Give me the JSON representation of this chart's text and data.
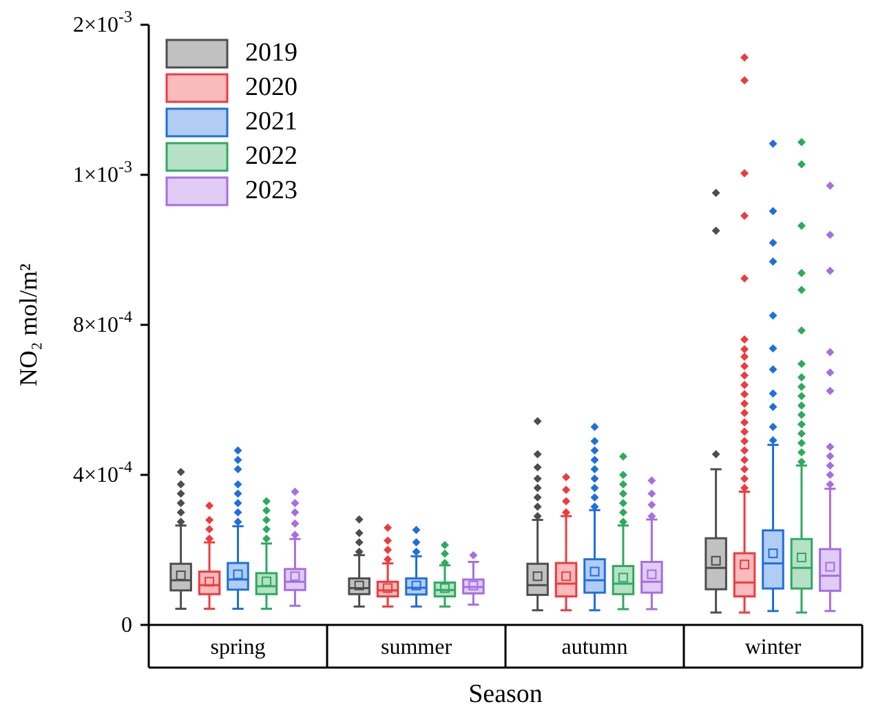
{
  "chart_data": {
    "type": "box",
    "xlabel": "Season",
    "ylabel": "NO₂ mol/m²",
    "categories": [
      "spring",
      "summer",
      "autumn",
      "winter"
    ],
    "ylim": [
      0,
      0.0016
    ],
    "yticks": [
      {
        "value": 0,
        "label": "0"
      },
      {
        "value": 0.0004,
        "label": "4×10$^{-4}$"
      },
      {
        "value": 0.0008,
        "label": "8×10$^{-4}$"
      },
      {
        "value": 0.0012,
        "label": "1×10$^{-3}$"
      },
      {
        "value": 0.0016,
        "label": "2×10$^{-3}$"
      }
    ],
    "legend": "top left",
    "marker": "diamond",
    "series": [
      {
        "name": "2019",
        "color": "#4d4d4d",
        "boxes": [
          {
            "low": 4.3e-05,
            "q1": 9.2e-05,
            "median": 0.000119,
            "q3": 0.000163,
            "high": 0.000265,
            "mean": 0.000132,
            "outliers": [
              0.000275,
              0.0003,
              0.000325,
              0.00035,
              0.000375,
              0.000408
            ]
          },
          {
            "low": 4.9e-05,
            "q1": 8.2e-05,
            "median": 9.8e-05,
            "q3": 0.000124,
            "high": 0.000186,
            "mean": 0.000105,
            "outliers": [
              0.000195,
              0.00022,
              0.000245,
              0.000281
            ]
          },
          {
            "low": 3.9e-05,
            "q1": 8e-05,
            "median": 0.000106,
            "q3": 0.000163,
            "high": 0.00028,
            "mean": 0.00013,
            "outliers": [
              0.00029,
              0.000315,
              0.00034,
              0.000365,
              0.00039,
              0.00042,
              0.000455,
              0.000543
            ]
          },
          {
            "low": 3.3e-05,
            "q1": 9.5e-05,
            "median": 0.000152,
            "q3": 0.000231,
            "high": 0.000415,
            "mean": 0.000171,
            "outliers": [
              0.000455,
              0.001051,
              0.001152
            ]
          }
        ]
      },
      {
        "name": "2020",
        "color": "#ee3b3e",
        "boxes": [
          {
            "low": 4.3e-05,
            "q1": 8.2e-05,
            "median": 0.000106,
            "q3": 0.000142,
            "high": 0.00022,
            "mean": 0.000115,
            "outliers": [
              0.00023,
              0.000255,
              0.00028,
              0.000318
            ]
          },
          {
            "low": 4.9e-05,
            "q1": 7.6e-05,
            "median": 9.2e-05,
            "q3": 0.000115,
            "high": 0.000164,
            "mean": 9.8e-05,
            "outliers": [
              0.000175,
              0.0002,
              0.000225,
              0.000259
            ]
          },
          {
            "low": 3.9e-05,
            "q1": 7.6e-05,
            "median": 0.00011,
            "q3": 0.000165,
            "high": 0.00029,
            "mean": 0.00013,
            "outliers": [
              0.0003,
              0.00033,
              0.00036,
              0.000394
            ]
          },
          {
            "low": 3.3e-05,
            "q1": 7.6e-05,
            "median": 0.000113,
            "q3": 0.000191,
            "high": 0.000355,
            "mean": 0.000161,
            "outliers": [
              0.000365,
              0.00039,
              0.000415,
              0.00044,
              0.000465,
              0.00049,
              0.000515,
              0.00054,
              0.000565,
              0.00059,
              0.000615,
              0.00064,
              0.000665,
              0.00069,
              0.000715,
              0.000735,
              0.000761,
              0.000924,
              0.001091,
              0.001204,
              0.001452,
              0.001513
            ]
          }
        ]
      },
      {
        "name": "2021",
        "color": "#1f6fdc",
        "boxes": [
          {
            "low": 4.3e-05,
            "q1": 9.4e-05,
            "median": 0.000121,
            "q3": 0.000165,
            "high": 0.000263,
            "mean": 0.000135,
            "outliers": [
              0.000275,
              0.0003,
              0.000325,
              0.00035,
              0.000375,
              0.000415,
              0.00044,
              0.000465
            ]
          },
          {
            "low": 4.9e-05,
            "q1": 8.1e-05,
            "median": 9.9e-05,
            "q3": 0.000124,
            "high": 0.000183,
            "mean": 0.000105,
            "outliers": [
              0.000195,
              0.00022,
              0.000253
            ]
          },
          {
            "low": 3.9e-05,
            "q1": 8.6e-05,
            "median": 0.000119,
            "q3": 0.000175,
            "high": 0.000306,
            "mean": 0.000142,
            "outliers": [
              0.000315,
              0.00034,
              0.000365,
              0.00039,
              0.000415,
              0.00044,
              0.000465,
              0.00049,
              0.000528
            ]
          },
          {
            "low": 3.7e-05,
            "q1": 9.7e-05,
            "median": 0.000164,
            "q3": 0.000252,
            "high": 0.00048,
            "mean": 0.000191,
            "outliers": [
              0.000492,
              0.000528,
              0.000581,
              0.000617,
              0.000681,
              0.000737,
              0.000825,
              0.000969,
              0.001019,
              0.001103,
              0.001283
            ]
          }
        ]
      },
      {
        "name": "2022",
        "color": "#2eaa5e",
        "boxes": [
          {
            "low": 4.3e-05,
            "q1": 8.2e-05,
            "median": 0.000103,
            "q3": 0.000138,
            "high": 0.000217,
            "mean": 0.000116,
            "outliers": [
              0.00023,
              0.000255,
              0.00028,
              0.000305,
              0.00033
            ]
          },
          {
            "low": 4.9e-05,
            "q1": 7.6e-05,
            "median": 9.3e-05,
            "q3": 0.000113,
            "high": 0.000159,
            "mean": 9.8e-05,
            "outliers": [
              0.000165,
              0.00019,
              0.000213
            ]
          },
          {
            "low": 4.2e-05,
            "q1": 8.2e-05,
            "median": 0.00011,
            "q3": 0.000157,
            "high": 0.000265,
            "mean": 0.000126,
            "outliers": [
              0.000275,
              0.0003,
              0.000325,
              0.00035,
              0.000375,
              0.0004,
              0.000449
            ]
          },
          {
            "low": 3.3e-05,
            "q1": 9.7e-05,
            "median": 0.000152,
            "q3": 0.000229,
            "high": 0.000425,
            "mean": 0.00018,
            "outliers": [
              0.000435,
              0.00046,
              0.000485,
              0.00051,
              0.000535,
              0.00056,
              0.000585,
              0.00061,
              0.000635,
              0.00066,
              0.000696,
              0.000785,
              0.000893,
              0.000938,
              0.001064,
              0.001228,
              0.001287
            ]
          }
        ]
      },
      {
        "name": "2023",
        "color": "#a66ee0",
        "boxes": [
          {
            "low": 5.1e-05,
            "q1": 9.3e-05,
            "median": 0.000115,
            "q3": 0.000149,
            "high": 0.000229,
            "mean": 0.00013,
            "outliers": [
              0.00024,
              0.00027,
              0.0003,
              0.000325,
              0.000355
            ]
          },
          {
            "low": 5.4e-05,
            "q1": 8.4e-05,
            "median": 0.000101,
            "q3": 0.000121,
            "high": 0.000168,
            "mean": 0.000105,
            "outliers": [
              0.000186
            ]
          },
          {
            "low": 4.2e-05,
            "q1": 8.6e-05,
            "median": 0.000115,
            "q3": 0.000168,
            "high": 0.000281,
            "mean": 0.000135,
            "outliers": [
              0.00029,
              0.00032,
              0.00035,
              0.000385
            ]
          },
          {
            "low": 3.7e-05,
            "q1": 9.1e-05,
            "median": 0.000131,
            "q3": 0.000202,
            "high": 0.000363,
            "mean": 0.000155,
            "outliers": [
              0.000375,
              0.0004,
              0.000425,
              0.00045,
              0.000475,
              0.000624,
              0.000673,
              0.000727,
              0.000944,
              0.00104,
              0.001171
            ]
          }
        ]
      }
    ]
  }
}
